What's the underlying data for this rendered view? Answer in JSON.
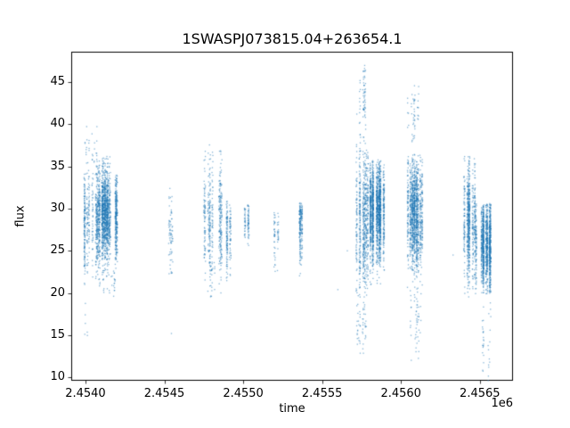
{
  "chart_data": {
    "type": "scatter",
    "title": "1SWASPJ073815.04+263654.1",
    "xlabel": "time",
    "ylabel": "flux",
    "offset_label": "1e6",
    "marker_color": "#1f77b4",
    "marker_alpha": 0.55,
    "grid": false,
    "legend": "none",
    "xlim": [
      2453910,
      2456710
    ],
    "ylim": [
      9.6,
      48.6
    ],
    "xticks": {
      "values": [
        2454000,
        2454500,
        2455000,
        2455500,
        2456000,
        2456500
      ],
      "labels": [
        "2.4540",
        "2.4545",
        "2.4550",
        "2.4555",
        "2.4560",
        "2.4565"
      ]
    },
    "yticks": {
      "values": [
        10,
        15,
        20,
        25,
        30,
        35,
        40,
        45
      ],
      "labels": [
        "10",
        "15",
        "20",
        "25",
        "30",
        "35",
        "40",
        "45"
      ]
    },
    "clusters": [
      {
        "x": [
          2453990,
          2454080
        ],
        "strips": 10,
        "count": 500,
        "y_mean": 28.5,
        "y_std": 3.0,
        "y_range": [
          21.0,
          40.0
        ]
      },
      {
        "x": [
          2454000,
          2454090
        ],
        "strips": 6,
        "count": 25,
        "y_mean": 37.0,
        "y_std": 2.0,
        "y_range": [
          34.0,
          40.5
        ]
      },
      {
        "x": [
          2453995,
          2454015
        ],
        "strips": 2,
        "count": 6,
        "y_mean": 16.0,
        "y_std": 1.5,
        "y_range": [
          14.0,
          19.0
        ]
      },
      {
        "x": [
          2454080,
          2454200
        ],
        "strips": 16,
        "count": 1600,
        "y_mean": 29.3,
        "y_std": 2.8,
        "y_range": [
          21.5,
          36.2
        ]
      },
      {
        "x": [
          2454080,
          2454200
        ],
        "strips": 8,
        "count": 30,
        "y_mean": 21.5,
        "y_std": 1.2,
        "y_range": [
          19.5,
          23.0
        ]
      },
      {
        "x": [
          2454525,
          2454575
        ],
        "strips": 4,
        "count": 70,
        "y_mean": 27.5,
        "y_std": 2.6,
        "y_range": [
          21.5,
          32.5
        ]
      },
      {
        "x": [
          2454740,
          2454870
        ],
        "strips": 10,
        "count": 450,
        "y_mean": 28.5,
        "y_std": 3.4,
        "y_range": [
          20.0,
          38.2
        ]
      },
      {
        "x": [
          2454750,
          2454860
        ],
        "strips": 5,
        "count": 20,
        "y_mean": 21.0,
        "y_std": 1.5,
        "y_range": [
          19.0,
          24.0
        ]
      },
      {
        "x": [
          2454895,
          2454950
        ],
        "strips": 5,
        "count": 160,
        "y_mean": 27.0,
        "y_std": 2.6,
        "y_range": [
          21.0,
          31.0
        ]
      },
      {
        "x": [
          2455010,
          2455040
        ],
        "strips": 3,
        "count": 90,
        "y_mean": 28.8,
        "y_std": 1.3,
        "y_range": [
          23.5,
          30.5
        ]
      },
      {
        "x": [
          2455195,
          2455225
        ],
        "strips": 3,
        "count": 60,
        "y_mean": 26.5,
        "y_std": 2.4,
        "y_range": [
          22.0,
          30.2
        ]
      },
      {
        "x": [
          2455350,
          2455380
        ],
        "strips": 3,
        "count": 200,
        "y_mean": 28.3,
        "y_std": 2.2,
        "y_range": [
          20.3,
          30.7
        ]
      },
      {
        "x": [
          2455715,
          2455795
        ],
        "strips": 8,
        "count": 700,
        "y_mean": 28.5,
        "y_std": 4.5,
        "y_range": [
          14.0,
          42.0
        ]
      },
      {
        "x": [
          2455730,
          2455790
        ],
        "strips": 5,
        "count": 60,
        "y_mean": 43.0,
        "y_std": 2.0,
        "y_range": [
          40.0,
          47.0
        ]
      },
      {
        "x": [
          2455720,
          2455800
        ],
        "strips": 5,
        "count": 40,
        "y_mean": 16.0,
        "y_std": 1.8,
        "y_range": [
          12.8,
          20.0
        ]
      },
      {
        "x": [
          2455795,
          2455895
        ],
        "strips": 12,
        "count": 1700,
        "y_mean": 29.5,
        "y_std": 3.0,
        "y_range": [
          21.0,
          35.8
        ]
      },
      {
        "x": [
          2456020,
          2456140
        ],
        "strips": 12,
        "count": 1300,
        "y_mean": 29.5,
        "y_std": 3.4,
        "y_range": [
          20.0,
          36.5
        ]
      },
      {
        "x": [
          2456040,
          2456120
        ],
        "strips": 6,
        "count": 50,
        "y_mean": 41.0,
        "y_std": 2.2,
        "y_range": [
          37.5,
          45.2
        ]
      },
      {
        "x": [
          2456030,
          2456130
        ],
        "strips": 6,
        "count": 50,
        "y_mean": 17.0,
        "y_std": 2.5,
        "y_range": [
          12.0,
          21.0
        ]
      },
      {
        "x": [
          2456390,
          2456470
        ],
        "strips": 8,
        "count": 700,
        "y_mean": 28.5,
        "y_std": 3.6,
        "y_range": [
          19.5,
          36.3
        ]
      },
      {
        "x": [
          2456460,
          2456585
        ],
        "strips": 12,
        "count": 1300,
        "y_mean": 25.8,
        "y_std": 2.8,
        "y_range": [
          19.8,
          30.6
        ]
      },
      {
        "x": [
          2456480,
          2456580
        ],
        "strips": 6,
        "count": 35,
        "y_mean": 15.0,
        "y_std": 3.0,
        "y_range": [
          9.4,
          20.0
        ]
      }
    ],
    "extra_points": [
      [
        2454545,
        15.2
      ],
      [
        2455600,
        20.4
      ],
      [
        2455660,
        25.0
      ],
      [
        2456330,
        24.5
      ]
    ]
  }
}
